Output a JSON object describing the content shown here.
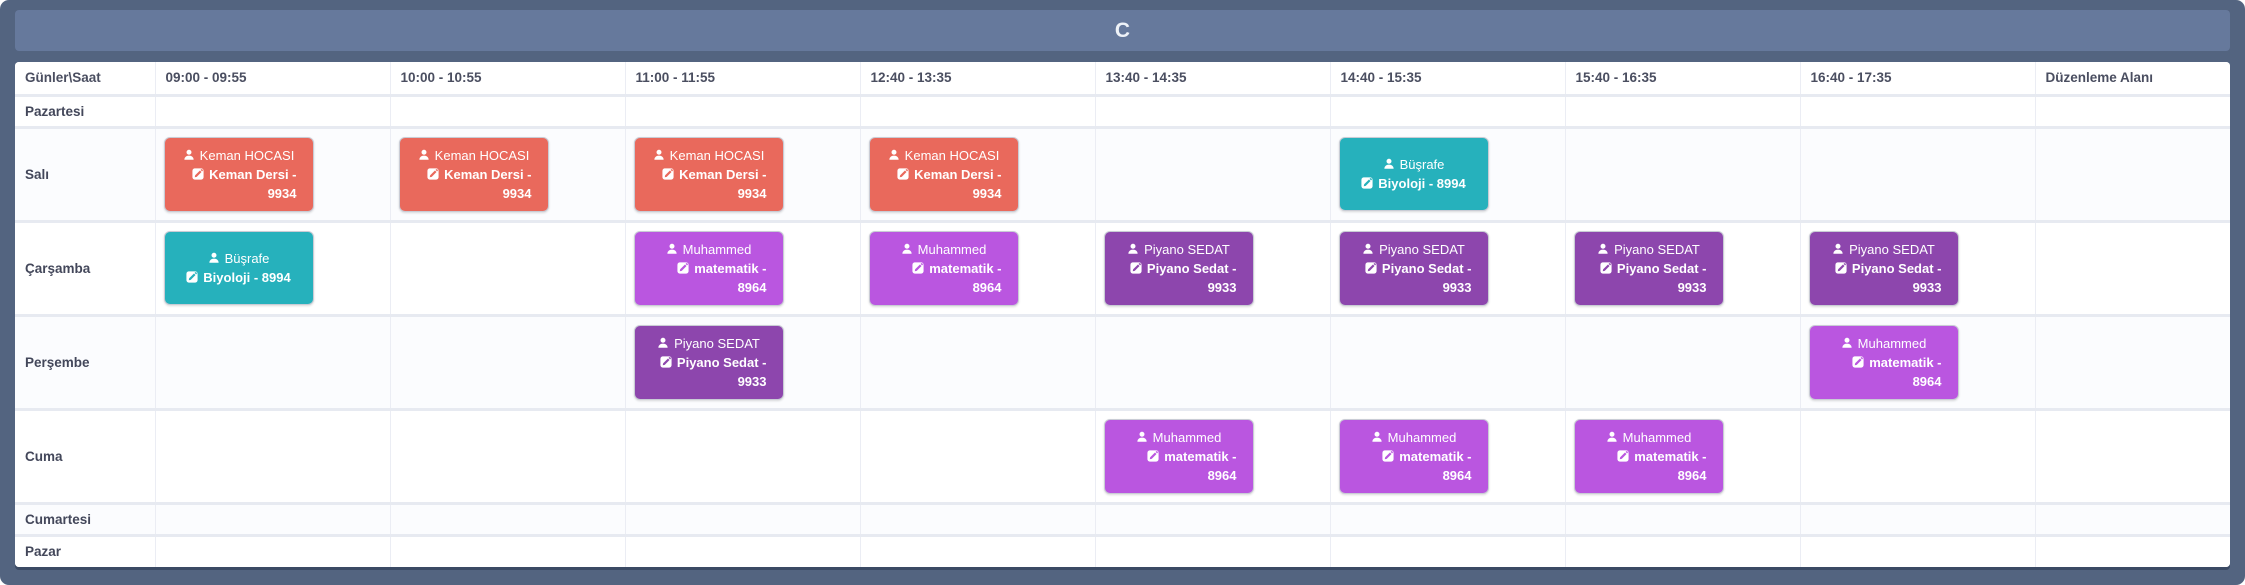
{
  "window": {
    "title": "C"
  },
  "colors": {
    "frame": "#536480",
    "titlebar": "#66799c",
    "red": "#e9695c",
    "teal": "#26b1bc",
    "violet": "#ba56e0",
    "purple": "#8d46ad"
  },
  "icons": {
    "teacher": "user-icon",
    "lesson": "edit-icon"
  },
  "schedule": {
    "corner_header": "Günler\\Saat",
    "time_columns": [
      "09:00 - 09:55",
      "10:00 - 10:55",
      "11:00 - 11:55",
      "12:40 - 13:35",
      "13:40 - 14:35",
      "14:40 - 15:35",
      "15:40 - 16:35",
      "16:40 - 17:35"
    ],
    "edit_column": "Düzenleme Alanı",
    "days": [
      {
        "label": "Pazartesi",
        "size": "short",
        "cards": []
      },
      {
        "label": "Salı",
        "size": "tall",
        "cards": [
          {
            "col": 0,
            "teacher": "Keman HOCASI",
            "lesson": "Keman Dersi - 9934",
            "color": "red"
          },
          {
            "col": 1,
            "teacher": "Keman HOCASI",
            "lesson": "Keman Dersi - 9934",
            "color": "red"
          },
          {
            "col": 2,
            "teacher": "Keman HOCASI",
            "lesson": "Keman Dersi - 9934",
            "color": "red"
          },
          {
            "col": 3,
            "teacher": "Keman HOCASI",
            "lesson": "Keman Dersi - 9934",
            "color": "red"
          },
          {
            "col": 5,
            "teacher": "Büşrafe",
            "lesson": "Biyoloji - 8994",
            "color": "teal"
          }
        ]
      },
      {
        "label": "Çarşamba",
        "size": "tall",
        "cards": [
          {
            "col": 0,
            "teacher": "Büşrafe",
            "lesson": "Biyoloji - 8994",
            "color": "teal"
          },
          {
            "col": 2,
            "teacher": "Muhammed",
            "lesson": "matematik - 8964",
            "color": "violet"
          },
          {
            "col": 3,
            "teacher": "Muhammed",
            "lesson": "matematik - 8964",
            "color": "violet"
          },
          {
            "col": 4,
            "teacher": "Piyano SEDAT",
            "lesson": "Piyano Sedat - 9933",
            "color": "purple"
          },
          {
            "col": 5,
            "teacher": "Piyano SEDAT",
            "lesson": "Piyano Sedat - 9933",
            "color": "purple"
          },
          {
            "col": 6,
            "teacher": "Piyano SEDAT",
            "lesson": "Piyano Sedat - 9933",
            "color": "purple"
          },
          {
            "col": 7,
            "teacher": "Piyano SEDAT",
            "lesson": "Piyano Sedat - 9933",
            "color": "purple"
          }
        ]
      },
      {
        "label": "Perşembe",
        "size": "tall",
        "cards": [
          {
            "col": 2,
            "teacher": "Piyano SEDAT",
            "lesson": "Piyano Sedat - 9933",
            "color": "purple"
          },
          {
            "col": 7,
            "teacher": "Muhammed",
            "lesson": "matematik - 8964",
            "color": "violet"
          }
        ]
      },
      {
        "label": "Cuma",
        "size": "tall",
        "cards": [
          {
            "col": 4,
            "teacher": "Muhammed",
            "lesson": "matematik - 8964",
            "color": "violet"
          },
          {
            "col": 5,
            "teacher": "Muhammed",
            "lesson": "matematik - 8964",
            "color": "violet"
          },
          {
            "col": 6,
            "teacher": "Muhammed",
            "lesson": "matematik - 8964",
            "color": "violet"
          }
        ]
      },
      {
        "label": "Cumartesi",
        "size": "short",
        "cards": []
      },
      {
        "label": "Pazar",
        "size": "short",
        "cards": []
      }
    ]
  }
}
